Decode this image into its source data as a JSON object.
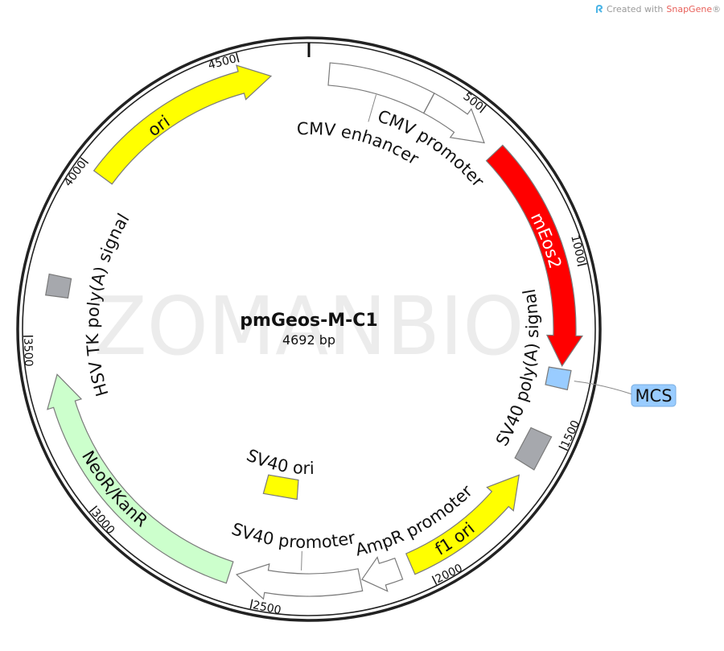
{
  "credit": {
    "prefix": "Created with",
    "brand": "SnapGene",
    "suffix": "®"
  },
  "watermark": "ZOMANBIO",
  "plasmid": {
    "name": "pmGeos-M-C1",
    "length_label": "4692 bp",
    "length_bp": 4692
  },
  "ticks": [
    500,
    1000,
    1500,
    2000,
    2500,
    3000,
    3500,
    4000,
    4500
  ],
  "features": [
    {
      "name": "CMV enhancer",
      "start": 59,
      "end": 365,
      "direction": "none",
      "shape": "arc",
      "color": "#ffffff"
    },
    {
      "name": "CMV promoter",
      "start": 365,
      "end": 564,
      "direction": "forward",
      "shape": "arrow",
      "color": "#ffffff"
    },
    {
      "name": "mEos2",
      "start": 606,
      "end": 1281,
      "direction": "forward",
      "shape": "arrow",
      "color": "#ff0000"
    },
    {
      "name": "MCS",
      "start": 1290,
      "end": 1345,
      "direction": "none",
      "shape": "box",
      "color": "#99ccff"
    },
    {
      "name": "SV40 poly(A) signal",
      "start": 1485,
      "end": 1590,
      "direction": "none",
      "shape": "box",
      "color": "#a6a8ad"
    },
    {
      "name": "f1 ori",
      "start": 1626,
      "end": 2041,
      "direction": "reverse",
      "shape": "arrow",
      "color": "#ffff00"
    },
    {
      "name": "AmpR promoter",
      "start": 2078,
      "end": 2190,
      "direction": "forward",
      "shape": "arrow",
      "color": "#ffffff"
    },
    {
      "name": "SV40 promoter",
      "start": 2195,
      "end": 2560,
      "direction": "forward",
      "shape": "arrow",
      "color": "#ffffff"
    },
    {
      "name": "SV40 ori",
      "start": 2398,
      "end": 2548,
      "direction": "none",
      "shape": "box",
      "color": "#ffff00"
    },
    {
      "name": "NeoR/KanR",
      "start": 2581,
      "end": 3386,
      "direction": "forward",
      "shape": "arrow",
      "color": "#ccffcc"
    },
    {
      "name": "HSV TK poly(A) signal",
      "start": 3615,
      "end": 3675,
      "direction": "none",
      "shape": "box",
      "color": "#a6a8ad"
    },
    {
      "name": "ori",
      "start": 3993,
      "end": 4581,
      "direction": "forward",
      "shape": "arrow",
      "color": "#ffff00"
    }
  ]
}
